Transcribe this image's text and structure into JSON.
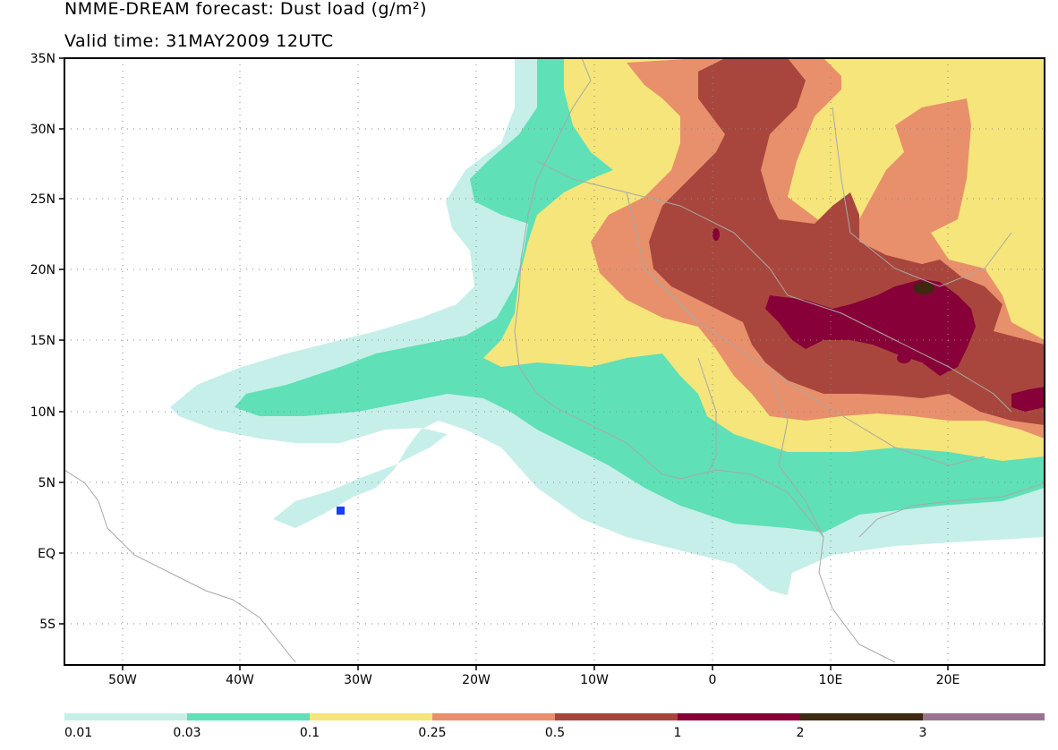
{
  "title_line1": "NMME-DREAM forecast: Dust load (g/m²)",
  "title_line2": "Valid time: 31MAY2009 12UTC",
  "lat_labels": [
    "35N",
    "30N",
    "25N",
    "20N",
    "15N",
    "10N",
    "5N",
    "EQ",
    "5S"
  ],
  "lon_labels": [
    "50W",
    "40W",
    "30W",
    "20W",
    "10W",
    "0",
    "10E",
    "20E"
  ],
  "legend": {
    "thresholds": [
      "0.01",
      "0.03",
      "0.1",
      "0.25",
      "0.5",
      "1",
      "2",
      "3"
    ],
    "colors": [
      "#c6efea",
      "#5fe0b7",
      "#f5e57a",
      "#e8906b",
      "#a8463d",
      "#870038",
      "#3e2810",
      "#9a7294"
    ]
  },
  "station_marker": {
    "color": "#1a3cff"
  }
}
